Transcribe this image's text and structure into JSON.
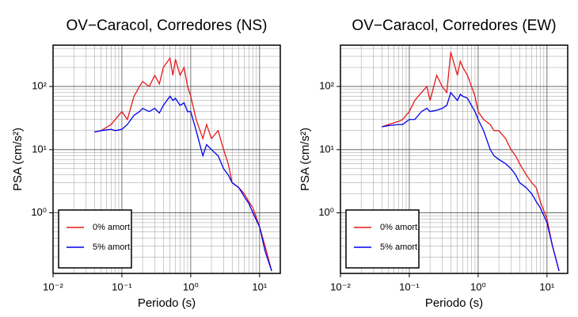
{
  "chart_data": [
    {
      "type": "line",
      "title": "OV−Caracol, Corredores (NS)",
      "x_label": "Periodo (s)",
      "y_label": "PSA (cm/s²)",
      "xscale": "log",
      "yscale": "log",
      "grid": true,
      "minor_grid": true,
      "legend": "lower left",
      "xlim": [
        0.01,
        20
      ],
      "ylim": [
        0.11,
        450
      ],
      "xticks": [
        {
          "value": 0.01,
          "label": "10⁻²"
        },
        {
          "value": 0.1,
          "label": "10⁻¹"
        },
        {
          "value": 1,
          "label": "10⁰"
        },
        {
          "value": 10,
          "label": "10¹"
        }
      ],
      "yticks": [
        {
          "value": 1,
          "label": "10⁰"
        },
        {
          "value": 10,
          "label": "10¹"
        },
        {
          "value": 100,
          "label": "10²"
        }
      ],
      "x": [
        0.04,
        0.05,
        0.07,
        0.08,
        0.1,
        0.12,
        0.15,
        0.18,
        0.2,
        0.25,
        0.3,
        0.35,
        0.4,
        0.5,
        0.55,
        0.6,
        0.7,
        0.8,
        0.9,
        1.0,
        1.2,
        1.5,
        1.7,
        2.0,
        2.5,
        3,
        3.5,
        4,
        5,
        6,
        7,
        8,
        10,
        12,
        15
      ],
      "series": [
        {
          "name": "0% amort.",
          "color": "#e41a1c",
          "values": [
            19,
            20,
            25,
            30,
            40,
            30,
            70,
            100,
            120,
            100,
            150,
            110,
            200,
            280,
            150,
            270,
            150,
            200,
            100,
            70,
            30,
            15,
            25,
            15,
            20,
            10,
            6,
            3,
            2.5,
            2,
            1.5,
            1.2,
            0.6,
            0.3,
            0.12
          ]
        },
        {
          "name": "5% amort.",
          "color": "#0000ee",
          "values": [
            19,
            20,
            21,
            20,
            21,
            25,
            35,
            40,
            45,
            40,
            45,
            38,
            50,
            70,
            60,
            65,
            50,
            55,
            40,
            40,
            20,
            8,
            12,
            10,
            8,
            5,
            4,
            3,
            2.5,
            1.8,
            1.4,
            1.0,
            0.6,
            0.25,
            0.12
          ]
        }
      ]
    },
    {
      "type": "line",
      "title": "OV−Caracol, Corredores (EW)",
      "x_label": "Periodo (s)",
      "y_label": "PSA (cm/s²)",
      "xscale": "log",
      "yscale": "log",
      "grid": true,
      "minor_grid": true,
      "legend": "lower left",
      "xlim": [
        0.01,
        20
      ],
      "ylim": [
        0.11,
        450
      ],
      "xticks": [
        {
          "value": 0.01,
          "label": "10⁻²"
        },
        {
          "value": 0.1,
          "label": "10⁻¹"
        },
        {
          "value": 1,
          "label": "10⁰"
        },
        {
          "value": 10,
          "label": "10¹"
        }
      ],
      "yticks": [
        {
          "value": 1,
          "label": "10⁰"
        },
        {
          "value": 10,
          "label": "10¹"
        },
        {
          "value": 100,
          "label": "10²"
        }
      ],
      "x": [
        0.04,
        0.05,
        0.07,
        0.08,
        0.1,
        0.12,
        0.15,
        0.18,
        0.2,
        0.25,
        0.3,
        0.35,
        0.4,
        0.5,
        0.55,
        0.6,
        0.7,
        0.8,
        0.9,
        1.0,
        1.2,
        1.5,
        1.7,
        2.0,
        2.5,
        3,
        3.5,
        4,
        5,
        6,
        7,
        8,
        10,
        12,
        15
      ],
      "series": [
        {
          "name": "0% amort.",
          "color": "#e41a1c",
          "values": [
            23,
            25,
            28,
            30,
            40,
            60,
            80,
            100,
            60,
            150,
            100,
            80,
            350,
            150,
            250,
            200,
            150,
            100,
            70,
            40,
            30,
            25,
            20,
            20,
            15,
            10,
            8,
            6,
            4,
            3,
            2.5,
            1.5,
            0.8,
            0.3,
            0.12
          ]
        },
        {
          "name": "5% amort.",
          "color": "#0000ee",
          "values": [
            23,
            24,
            25,
            25,
            30,
            30,
            40,
            45,
            40,
            42,
            45,
            50,
            80,
            60,
            75,
            70,
            65,
            50,
            40,
            30,
            20,
            10,
            8,
            7,
            6,
            5,
            4,
            3,
            2.5,
            2,
            1.5,
            1.2,
            0.7,
            0.3,
            0.12
          ]
        }
      ]
    }
  ]
}
